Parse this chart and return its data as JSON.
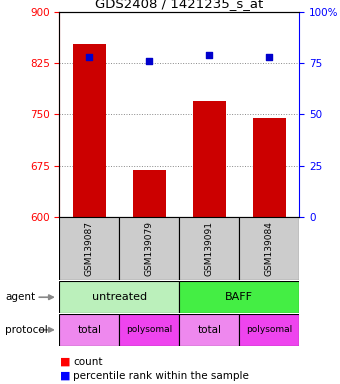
{
  "title": "GDS2408 / 1421235_s_at",
  "samples": [
    "GSM139087",
    "GSM139079",
    "GSM139091",
    "GSM139084"
  ],
  "bar_values": [
    852,
    668,
    770,
    745
  ],
  "dot_values": [
    78,
    76,
    79,
    78
  ],
  "ylim_left": [
    600,
    900
  ],
  "ylim_right": [
    0,
    100
  ],
  "yticks_left": [
    600,
    675,
    750,
    825,
    900
  ],
  "yticks_right": [
    0,
    25,
    50,
    75,
    100
  ],
  "bar_color": "#cc0000",
  "dot_color": "#0000cc",
  "agent_info": [
    {
      "start": 0,
      "end": 2,
      "label": "untreated",
      "color": "#bbf0bb"
    },
    {
      "start": 2,
      "end": 4,
      "label": "BAFF",
      "color": "#44ee44"
    }
  ],
  "proto_info": [
    {
      "start": 0,
      "end": 1,
      "label": "total",
      "color": "#ee88ee"
    },
    {
      "start": 1,
      "end": 2,
      "label": "polysomal",
      "color": "#ee44ee"
    },
    {
      "start": 2,
      "end": 3,
      "label": "total",
      "color": "#ee88ee"
    },
    {
      "start": 3,
      "end": 4,
      "label": "polysomal",
      "color": "#ee44ee"
    }
  ],
  "legend_count": "count",
  "legend_pct": "percentile rank within the sample",
  "grid_color": "#888888",
  "sample_box_color": "#cccccc",
  "bg_color": "#ffffff",
  "plot_bg": "#ffffff",
  "right_tick_labels": [
    "0",
    "25",
    "50",
    "75",
    "100%"
  ]
}
